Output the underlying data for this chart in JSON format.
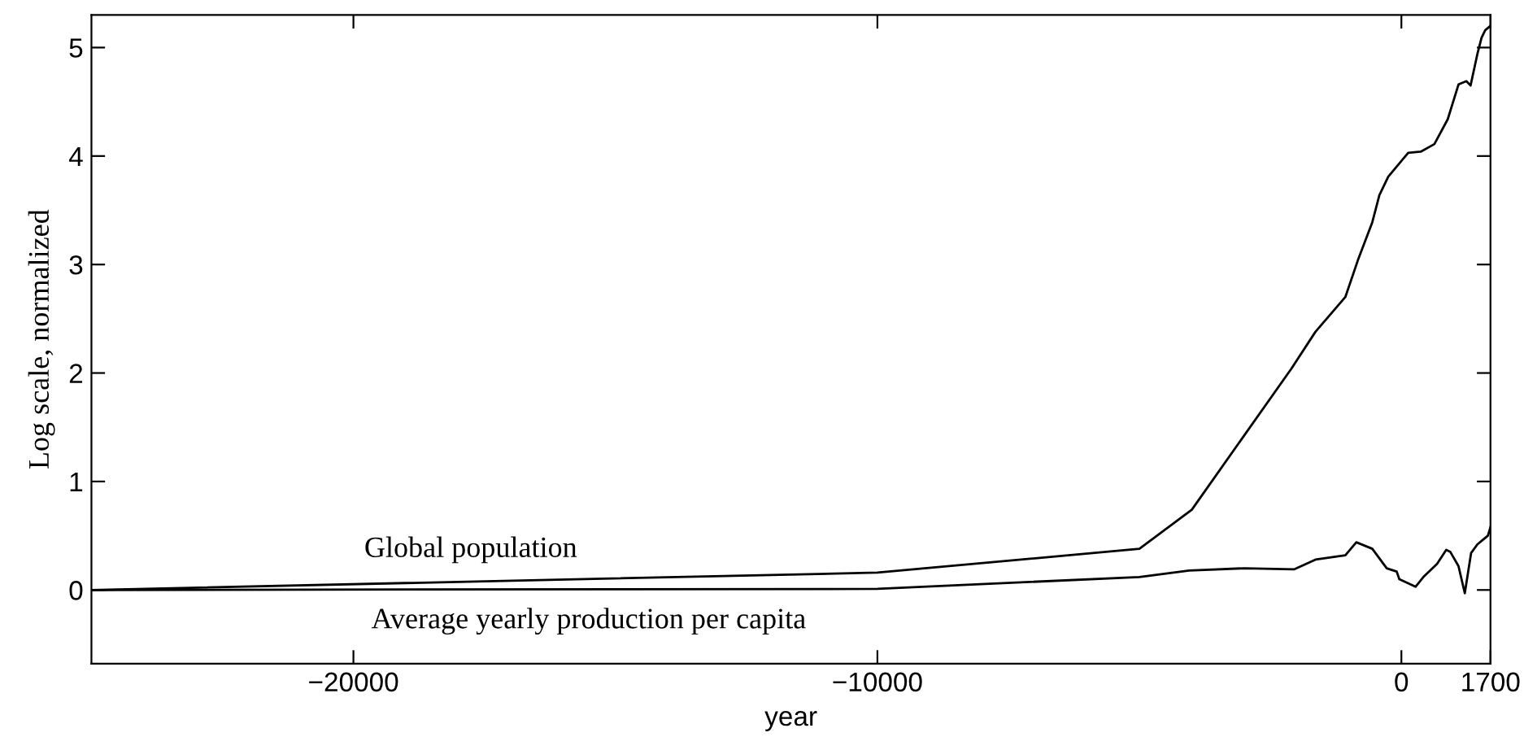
{
  "chart_data": {
    "type": "line",
    "xlabel": "year",
    "ylabel": "Log scale, normalized",
    "xlim": [
      -25000,
      1700
    ],
    "xticks": [
      -20000,
      -10000,
      0,
      1700
    ],
    "ylim": [
      -0.68,
      5.3
    ],
    "yticks": [
      0,
      1,
      2,
      3,
      4,
      5
    ],
    "grid": false,
    "legend": false,
    "marker": "none",
    "line_style": "solid",
    "series": [
      {
        "name": "Global population",
        "color": "#000000",
        "x": [
          -25000,
          -10000,
          -5000,
          -4000,
          -2100,
          -1640,
          -1070,
          -830,
          -555,
          -420,
          -250,
          130,
          370,
          630,
          885,
          1090,
          1240,
          1320,
          1450,
          1530,
          1600,
          1700
        ],
        "values": [
          0,
          0.16,
          0.38,
          0.74,
          2.04,
          2.38,
          2.7,
          3.04,
          3.39,
          3.64,
          3.81,
          4.03,
          4.04,
          4.11,
          4.34,
          4.66,
          4.69,
          4.65,
          4.94,
          5.09,
          5.16,
          5.2
        ]
      },
      {
        "name": "Average yearly production per capita",
        "color": "#000000",
        "x": [
          -25000,
          -10000,
          -5000,
          -4050,
          -3000,
          -2050,
          -1640,
          -1070,
          -860,
          -555,
          -280,
          -90,
          -40,
          270,
          420,
          680,
          855,
          935,
          1090,
          1210,
          1330,
          1450,
          1550,
          1650,
          1700
        ],
        "values": [
          0,
          0.01,
          0.12,
          0.18,
          0.2,
          0.19,
          0.28,
          0.32,
          0.44,
          0.38,
          0.2,
          0.17,
          0.1,
          0.03,
          0.12,
          0.24,
          0.37,
          0.35,
          0.22,
          -0.03,
          0.34,
          0.42,
          0.46,
          0.5,
          0.58
        ]
      }
    ]
  }
}
